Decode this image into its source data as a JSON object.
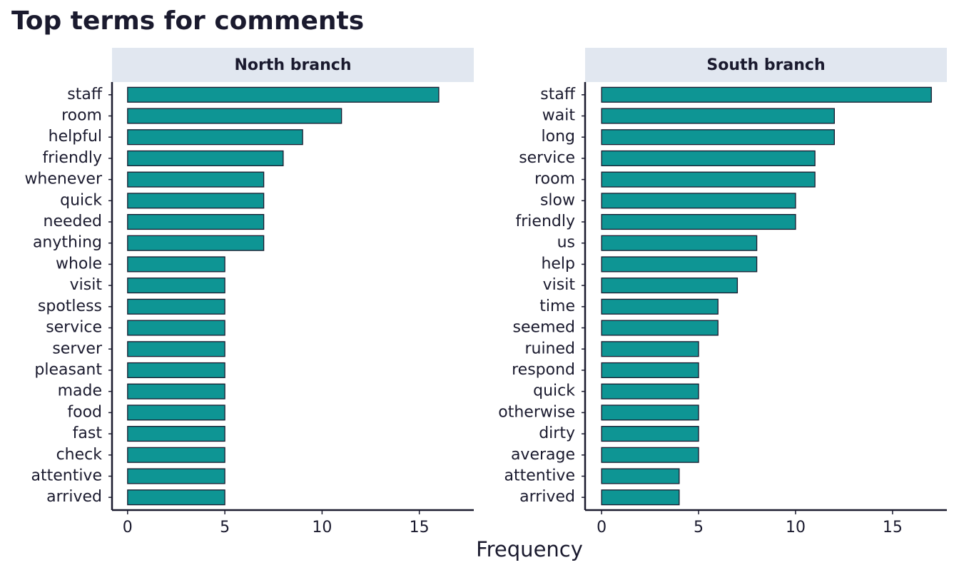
{
  "title": "Top terms for comments",
  "x_label": "Frequency",
  "chart_data": [
    {
      "type": "barh",
      "title": "North branch",
      "color": "#0e9594",
      "categories": [
        "staff",
        "room",
        "helpful",
        "friendly",
        "whenever",
        "quick",
        "needed",
        "anything",
        "whole",
        "visit",
        "spotless",
        "service",
        "server",
        "pleasant",
        "made",
        "food",
        "fast",
        "check",
        "attentive",
        "arrived"
      ],
      "values": [
        16,
        11,
        9,
        8,
        7,
        7,
        7,
        7,
        5,
        5,
        5,
        5,
        5,
        5,
        5,
        5,
        5,
        5,
        5,
        5
      ],
      "xlim": [
        -0.8,
        17.8
      ],
      "xticks": [
        0,
        5,
        10,
        15
      ]
    },
    {
      "type": "barh",
      "title": "South branch",
      "color": "#0e9594",
      "categories": [
        "staff",
        "wait",
        "long",
        "service",
        "room",
        "slow",
        "friendly",
        "us",
        "help",
        "visit",
        "time",
        "seemed",
        "ruined",
        "respond",
        "quick",
        "otherwise",
        "dirty",
        "average",
        "attentive",
        "arrived"
      ],
      "values": [
        17,
        12,
        12,
        11,
        11,
        10,
        10,
        8,
        8,
        7,
        6,
        6,
        5,
        5,
        5,
        5,
        5,
        5,
        4,
        4
      ],
      "xlim": [
        -0.85,
        17.8
      ],
      "xticks": [
        0,
        5,
        10,
        15
      ]
    }
  ]
}
